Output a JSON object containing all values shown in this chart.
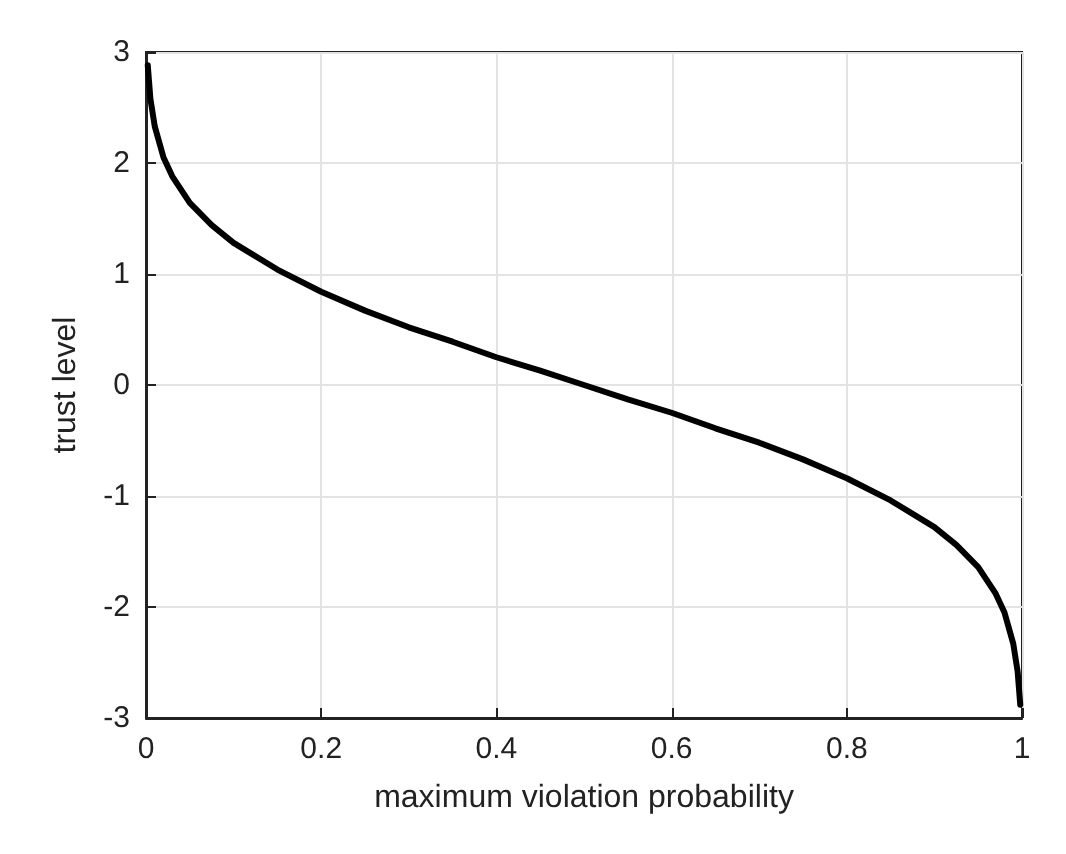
{
  "chart_data": {
    "type": "line",
    "xlabel": "maximum violation probability",
    "ylabel": "trust level",
    "xlim": [
      0,
      1
    ],
    "xticks": [
      0,
      0.2,
      0.4,
      0.6,
      0.8,
      1
    ],
    "ylim": [
      -3,
      3
    ],
    "yticks": [
      -3,
      -2,
      -1,
      0,
      1,
      2,
      3
    ],
    "grid": true,
    "marker": "none",
    "line_style": "solid",
    "series": [
      {
        "color": "#000000",
        "x": [
          0.002,
          0.005,
          0.01,
          0.02,
          0.03,
          0.05,
          0.075,
          0.1,
          0.15,
          0.2,
          0.25,
          0.3,
          0.35,
          0.4,
          0.45,
          0.5,
          0.55,
          0.6,
          0.65,
          0.7,
          0.75,
          0.8,
          0.85,
          0.9,
          0.925,
          0.95,
          0.97,
          0.98,
          0.99,
          0.995,
          0.998
        ],
        "values": [
          2.88,
          2.58,
          2.33,
          2.05,
          1.88,
          1.64,
          1.44,
          1.28,
          1.04,
          0.84,
          0.67,
          0.52,
          0.39,
          0.25,
          0.13,
          0,
          -0.13,
          -0.25,
          -0.39,
          -0.52,
          -0.67,
          -0.84,
          -1.04,
          -1.28,
          -1.44,
          -1.64,
          -1.88,
          -2.05,
          -2.33,
          -2.58,
          -2.88
        ]
      }
    ]
  }
}
